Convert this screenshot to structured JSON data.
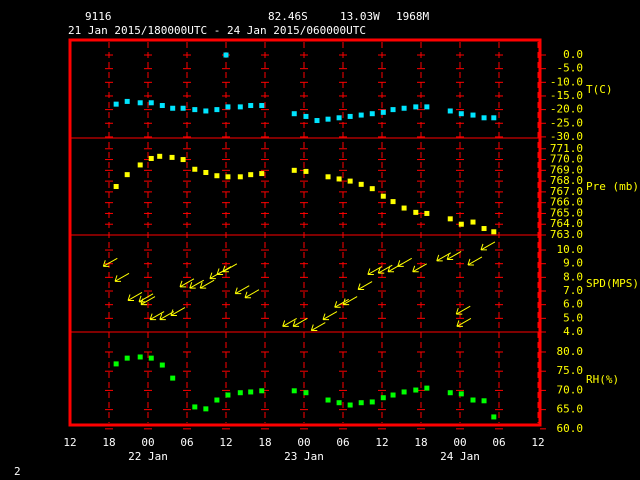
{
  "header": {
    "station": "9116",
    "lat": "82.46S",
    "lon": "13.03W",
    "elev": "1968M",
    "period": "21 Jan 2015/180000UTC - 24 Jan 2015/060000UTC"
  },
  "page_number": "2",
  "chart_data": [
    {
      "type": "scatter",
      "label": "T(C)",
      "color": "#00e5ff",
      "ylim": [
        -30.4,
        5.5
      ],
      "yticks": [
        {
          "value": 0,
          "label": "0.0"
        },
        {
          "value": -5,
          "label": "-5.0"
        },
        {
          "value": -10,
          "label": "-10.0"
        },
        {
          "value": -15,
          "label": "-15.0"
        },
        {
          "value": -20,
          "label": "-20.0"
        },
        {
          "value": -25,
          "label": "-25.0"
        },
        {
          "value": -30,
          "label": "-30.0"
        }
      ],
      "x": [
        7.1,
        8.8,
        10.8,
        12.5,
        14.2,
        15.8,
        17.4,
        19.2,
        20.9,
        22.6,
        24,
        24.3,
        26.2,
        27.8,
        29.5,
        34.5,
        36.3,
        38,
        39.7,
        41.4,
        43.1,
        44.8,
        46.5,
        48.2,
        49.7,
        51.4,
        53.2,
        54.9,
        58.5,
        60.2,
        62,
        63.7,
        65.2
      ],
      "values": [
        -18,
        -17,
        -17.5,
        -17.5,
        -18.5,
        -19.5,
        -19.5,
        -20,
        -20.5,
        -20,
        0,
        -19,
        -19,
        -18.5,
        -18.5,
        -21.5,
        -22.5,
        -24,
        -23.5,
        -23,
        -22.5,
        -22,
        -21.5,
        -21,
        -20,
        -19.5,
        -19,
        -19,
        -20.5,
        -21.5,
        -22,
        -23,
        -23
      ]
    },
    {
      "type": "scatter",
      "label": "Pre (mb)",
      "color": "#ffff00",
      "ylim": [
        763,
        772
      ],
      "yticks": [
        {
          "value": 771,
          "label": "771.0"
        },
        {
          "value": 770,
          "label": "770.0"
        },
        {
          "value": 769,
          "label": "769.0"
        },
        {
          "value": 768,
          "label": "768.0"
        },
        {
          "value": 767,
          "label": "767.0"
        },
        {
          "value": 766,
          "label": "766.0"
        },
        {
          "value": 765,
          "label": "765.0"
        },
        {
          "value": 764,
          "label": "764.0"
        },
        {
          "value": 763,
          "label": "763.0"
        }
      ],
      "x": [
        7.1,
        8.8,
        10.8,
        12.5,
        13.8,
        15.7,
        17.4,
        19.2,
        20.9,
        22.6,
        24.3,
        26.2,
        27.8,
        29.5,
        34.5,
        36.3,
        39.7,
        41.4,
        43.1,
        44.8,
        46.5,
        48.2,
        49.7,
        51.4,
        53.2,
        54.9,
        58.5,
        60.2,
        62,
        63.7,
        65.2
      ],
      "values": [
        767.5,
        768.6,
        769.5,
        770.1,
        770.3,
        770.2,
        770.0,
        769.1,
        768.8,
        768.5,
        768.4,
        768.4,
        768.6,
        768.7,
        769.0,
        768.9,
        768.4,
        768.2,
        768.0,
        767.7,
        767.3,
        766.6,
        766.1,
        765.5,
        765.1,
        765.0,
        764.5,
        764.0,
        764.2,
        763.6,
        763.3
      ]
    },
    {
      "type": "wind",
      "label": "SPD(MPS)",
      "color": "#ffff00",
      "ylim": [
        4,
        11.1
      ],
      "yticks": [
        {
          "value": 10,
          "label": "10.0"
        },
        {
          "value": 9,
          "label": "9.0"
        },
        {
          "value": 8,
          "label": "8.0"
        },
        {
          "value": 7,
          "label": "7.0"
        },
        {
          "value": 6,
          "label": "6.0"
        },
        {
          "value": 5,
          "label": "5.0"
        },
        {
          "value": 4,
          "label": "4.0"
        }
      ],
      "x": [
        6.2,
        8,
        10,
        11.7,
        12,
        13.4,
        14.9,
        16.6,
        18,
        19.5,
        21.1,
        22.6,
        23.7,
        24.6,
        26.5,
        28,
        33.8,
        35.4,
        38.2,
        40,
        41.8,
        43.1,
        45.4,
        46.9,
        48.5,
        50,
        51.5,
        53.8,
        57.5,
        59.1,
        60.5,
        60.6,
        62.3,
        64.3
      ],
      "values": [
        9.1,
        8.0,
        6.6,
        6.5,
        6.3,
        5.2,
        5.2,
        5.5,
        7.6,
        7.5,
        7.5,
        8.2,
        8.5,
        8.7,
        7.1,
        6.8,
        4.7,
        4.7,
        4.4,
        5.2,
        6.1,
        6.3,
        7.4,
        8.5,
        8.6,
        8.7,
        9.1,
        8.7,
        9.5,
        9.6,
        5.6,
        4.7,
        9.2,
        10.3
      ]
    },
    {
      "type": "scatter",
      "label": "RH(%)",
      "color": "#00ff00",
      "ylim": [
        61,
        85.2
      ],
      "yticks": [
        {
          "value": 80,
          "label": "80.0"
        },
        {
          "value": 75,
          "label": "75.0"
        },
        {
          "value": 70,
          "label": "70.0"
        },
        {
          "value": 65,
          "label": "65.0"
        },
        {
          "value": 60,
          "label": "60.0"
        }
      ],
      "x": [
        7.1,
        8.8,
        10.8,
        12.5,
        14.2,
        15.8,
        19.2,
        20.9,
        22.6,
        24.3,
        26.2,
        27.8,
        29.5,
        34.5,
        36.3,
        39.7,
        41.4,
        43.1,
        44.8,
        46.5,
        48.2,
        49.7,
        51.4,
        53.2,
        54.9,
        58.5,
        60.2,
        62,
        63.7,
        65.2
      ],
      "values": [
        76.9,
        78.4,
        78.7,
        78.4,
        76.6,
        73.2,
        65.7,
        65.2,
        67.5,
        68.8,
        69.4,
        69.6,
        69.9,
        69.9,
        69.4,
        67.5,
        66.8,
        66.2,
        66.8,
        67.0,
        68.1,
        68.8,
        69.6,
        70.1,
        70.6,
        69.4,
        69.1,
        67.5,
        67.3,
        63.1
      ],
      "xlim": [
        0,
        72
      ],
      "xticks": [
        {
          "value": 0,
          "label": "12"
        },
        {
          "value": 6,
          "label": "18"
        },
        {
          "value": 12,
          "label": "00"
        },
        {
          "value": 18,
          "label": "06"
        },
        {
          "value": 24,
          "label": "12"
        },
        {
          "value": 30,
          "label": "18"
        },
        {
          "value": 36,
          "label": "00"
        },
        {
          "value": 42,
          "label": "06"
        },
        {
          "value": 48,
          "label": "12"
        },
        {
          "value": 54,
          "label": "18"
        },
        {
          "value": 60,
          "label": "00"
        },
        {
          "value": 66,
          "label": "06"
        },
        {
          "value": 72,
          "label": "12"
        }
      ],
      "day_labels": [
        {
          "value": 12,
          "label": "22 Jan"
        },
        {
          "value": 36,
          "label": "23 Jan"
        },
        {
          "value": 60,
          "label": "24 Jan"
        }
      ]
    }
  ]
}
